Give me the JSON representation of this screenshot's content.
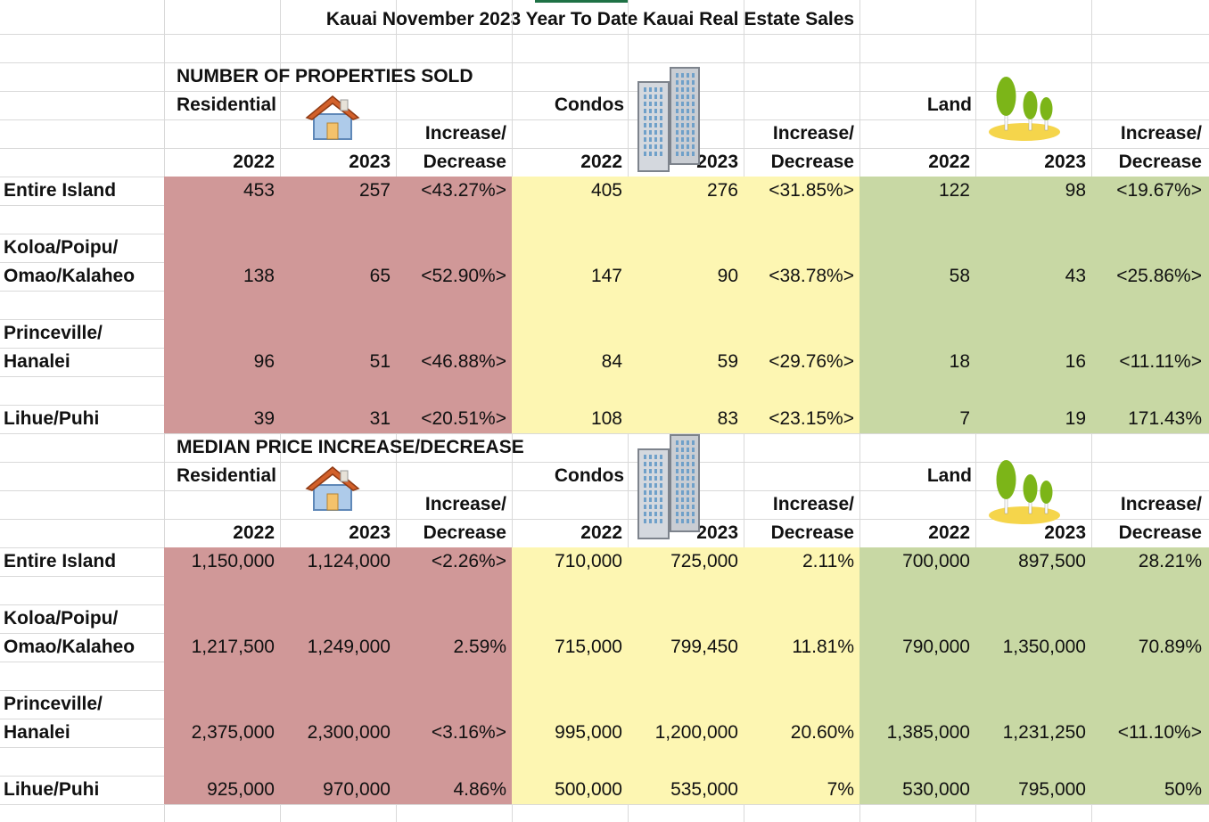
{
  "title": "Kauai November 2023 Year To Date Kauai Real Estate Sales",
  "colors": {
    "residential": "#d09898",
    "condos": "#fdf6b2",
    "land": "#c8d8a4",
    "grid": "#d9d9d9"
  },
  "sections": [
    {
      "heading": "NUMBER OF PROPERTIES SOLD",
      "categories": [
        {
          "label": "Residential",
          "icon": "house-icon",
          "col2022": "2022",
          "col2023": "2023",
          "change_line1": "Increase/",
          "change_line2": "Decrease"
        },
        {
          "label": "Condos",
          "icon": "buildings-icon",
          "col2022": "2022",
          "col2023": "2023",
          "change_line1": "Increase/",
          "change_line2": "Decrease"
        },
        {
          "label": "Land",
          "icon": "trees-icon",
          "col2022": "2022",
          "col2023": "2023",
          "change_line1": "Increase/",
          "change_line2": "Decrease"
        }
      ],
      "rows": [
        {
          "area_line1": "Entire Island",
          "area_line2": "",
          "values": [
            "453",
            "257",
            "<43.27%>",
            "405",
            "276",
            "<31.85%>",
            "122",
            "98",
            "<19.67%>"
          ]
        },
        {
          "area_line1": "Koloa/Poipu/",
          "area_line2": "Omao/Kalaheo",
          "values": [
            "138",
            "65",
            "<52.90%>",
            "147",
            "90",
            "<38.78%>",
            "58",
            "43",
            "<25.86%>"
          ]
        },
        {
          "area_line1": "Princeville/",
          "area_line2": "Hanalei",
          "values": [
            "96",
            "51",
            "<46.88%>",
            "84",
            "59",
            "<29.76%>",
            "18",
            "16",
            "<11.11%>"
          ]
        },
        {
          "area_line1": "Lihue/Puhi",
          "area_line2": "",
          "values": [
            "39",
            "31",
            "<20.51%>",
            "108",
            "83",
            "<23.15%>",
            "7",
            "19",
            "171.43%"
          ]
        }
      ]
    },
    {
      "heading": "MEDIAN PRICE INCREASE/DECREASE",
      "categories": [
        {
          "label": "Residential",
          "icon": "house-icon",
          "col2022": "2022",
          "col2023": "2023",
          "change_line1": "Increase/",
          "change_line2": "Decrease"
        },
        {
          "label": "Condos",
          "icon": "buildings-icon",
          "col2022": "2022",
          "col2023": "2023",
          "change_line1": "Increase/",
          "change_line2": "Decrease"
        },
        {
          "label": "Land",
          "icon": "trees-icon",
          "col2022": "2022",
          "col2023": "2023",
          "change_line1": "Increase/",
          "change_line2": "Decrease"
        }
      ],
      "rows": [
        {
          "area_line1": "Entire Island",
          "area_line2": "",
          "values": [
            "1,150,000",
            "1,124,000",
            "<2.26%>",
            "710,000",
            "725,000",
            "2.11%",
            "700,000",
            "897,500",
            "28.21%"
          ]
        },
        {
          "area_line1": "Koloa/Poipu/",
          "area_line2": "Omao/Kalaheo",
          "values": [
            "1,217,500",
            "1,249,000",
            "2.59%",
            "715,000",
            "799,450",
            "11.81%",
            "790,000",
            "1,350,000",
            "70.89%"
          ]
        },
        {
          "area_line1": "Princeville/",
          "area_line2": "Hanalei",
          "values": [
            "2,375,000",
            "2,300,000",
            "<3.16%>",
            "995,000",
            "1,200,000",
            "20.60%",
            "1,385,000",
            "1,231,250",
            "<11.10%>"
          ]
        },
        {
          "area_line1": "Lihue/Puhi",
          "area_line2": "",
          "values": [
            "925,000",
            "970,000",
            "4.86%",
            "500,000",
            "535,000",
            "7%",
            "530,000",
            "795,000",
            "50%"
          ]
        }
      ]
    }
  ]
}
